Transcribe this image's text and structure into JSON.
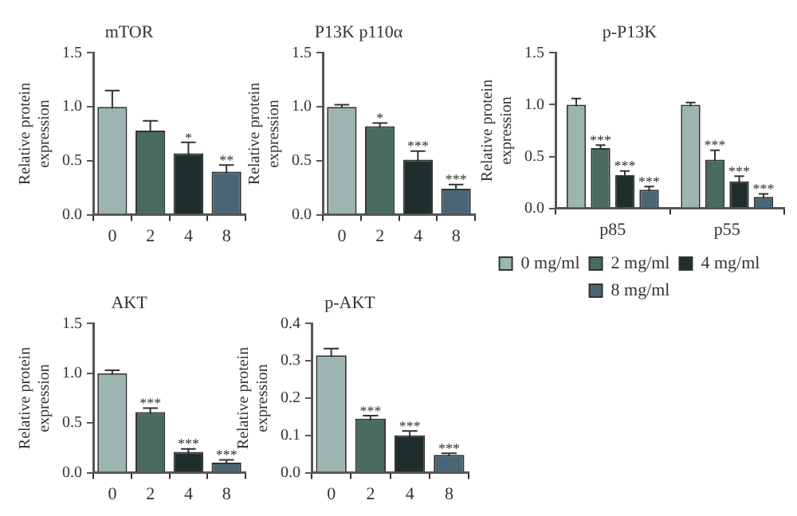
{
  "chart_data": [
    {
      "type": "bar",
      "title": "mTOR",
      "ylabel": "Relative protein expression",
      "categories": [
        "0",
        "2",
        "4",
        "8"
      ],
      "values": [
        1.0,
        0.78,
        0.57,
        0.4
      ],
      "colors": [
        "#9db5b0",
        "#4a6b5f",
        "#1f2e2c",
        "#4a6675"
      ],
      "errors": [
        0.15,
        0.09,
        0.1,
        0.06
      ],
      "ylim": [
        0,
        1.5
      ],
      "yticks": [
        {
          "value": 0,
          "label": "0.0"
        },
        {
          "value": 0.5,
          "label": "0.5"
        },
        {
          "value": 1,
          "label": "1.0"
        },
        {
          "value": 1.5,
          "label": "1.5"
        }
      ],
      "annotations": [
        {
          "text": "*",
          "x": "4",
          "y": 0.67
        },
        {
          "text": "**",
          "x": "8",
          "y": 0.46
        }
      ]
    },
    {
      "type": "bar",
      "title": "P13K p110α",
      "ylabel": "Relative protein expression",
      "categories": [
        "0",
        "2",
        "4",
        "8"
      ],
      "values": [
        1.0,
        0.82,
        0.51,
        0.24
      ],
      "colors": [
        "#9db5b0",
        "#4a6b5f",
        "#1f2e2c",
        "#4a6675"
      ],
      "errors": [
        0.02,
        0.03,
        0.08,
        0.04
      ],
      "ylim": [
        0,
        1.5
      ],
      "yticks": [
        {
          "value": 0,
          "label": "0.0"
        },
        {
          "value": 0.5,
          "label": "0.5"
        },
        {
          "value": 1,
          "label": "1.0"
        },
        {
          "value": 1.5,
          "label": "1.5"
        }
      ],
      "annotations": [
        {
          "text": "*",
          "x": "2",
          "y": 0.85
        },
        {
          "text": "***",
          "x": "4",
          "y": 0.59
        },
        {
          "text": "***",
          "x": "8",
          "y": 0.28
        }
      ]
    },
    {
      "type": "bar",
      "title": "p-P13K",
      "ylabel": "Relative protein expression",
      "categories": [
        "p85",
        "p55"
      ],
      "legend": "bottom",
      "series": [
        {
          "name": "0 mg/ml",
          "color": "#9db5b0",
          "values": [
            1.0,
            1.0
          ],
          "errors": [
            0.06,
            0.02
          ]
        },
        {
          "name": "2 mg/ml",
          "color": "#4a6b5f",
          "values": [
            0.58,
            0.47
          ],
          "errors": [
            0.03,
            0.09
          ]
        },
        {
          "name": "4 mg/ml",
          "color": "#1f2e2c",
          "values": [
            0.32,
            0.26
          ],
          "errors": [
            0.04,
            0.05
          ]
        },
        {
          "name": "8 mg/ml",
          "color": "#4a6675",
          "values": [
            0.18,
            0.11
          ],
          "errors": [
            0.03,
            0.03
          ]
        }
      ],
      "ylim": [
        0,
        1.5
      ],
      "yticks": [
        {
          "value": 0,
          "label": "0.0"
        },
        {
          "value": 0.5,
          "label": "0.5"
        },
        {
          "value": 1,
          "label": "1.0"
        },
        {
          "value": 1.5,
          "label": "1.5"
        }
      ],
      "annotations": [
        {
          "text": "***",
          "x": "p85",
          "y": 0.61
        },
        {
          "text": "***",
          "x": "p85",
          "y": 0.36
        },
        {
          "text": "***",
          "x": "p85",
          "y": 0.21
        },
        {
          "text": "***",
          "x": "p55",
          "y": 0.56
        },
        {
          "text": "***",
          "x": "p55",
          "y": 0.31
        },
        {
          "text": "***",
          "x": "p55",
          "y": 0.14
        }
      ]
    },
    {
      "type": "bar",
      "title": "AKT",
      "ylabel": "Relative protein expression",
      "categories": [
        "0",
        "2",
        "4",
        "8"
      ],
      "values": [
        1.0,
        0.61,
        0.21,
        0.1
      ],
      "colors": [
        "#9db5b0",
        "#4a6b5f",
        "#1f2e2c",
        "#4a6675"
      ],
      "errors": [
        0.03,
        0.04,
        0.03,
        0.03
      ],
      "ylim": [
        0,
        1.5
      ],
      "yticks": [
        {
          "value": 0,
          "label": "0.0"
        },
        {
          "value": 0.5,
          "label": "0.5"
        },
        {
          "value": 1,
          "label": "1.0"
        },
        {
          "value": 1.5,
          "label": "1.5"
        }
      ],
      "annotations": [
        {
          "text": "***",
          "x": "2",
          "y": 0.65
        },
        {
          "text": "***",
          "x": "4",
          "y": 0.24
        },
        {
          "text": "***",
          "x": "8",
          "y": 0.13
        }
      ]
    },
    {
      "type": "bar",
      "title": "p-AKT",
      "ylabel": "Relative protein expression",
      "categories": [
        "0",
        "2",
        "4",
        "8"
      ],
      "values": [
        0.315,
        0.145,
        0.1,
        0.048
      ],
      "colors": [
        "#9db5b0",
        "#4a6b5f",
        "#1f2e2c",
        "#4a6675"
      ],
      "errors": [
        0.018,
        0.008,
        0.012,
        0.004
      ],
      "ylim": [
        0,
        0.4
      ],
      "yticks": [
        {
          "value": 0,
          "label": "0.0"
        },
        {
          "value": 0.1,
          "label": "0.1"
        },
        {
          "value": 0.2,
          "label": "0.2"
        },
        {
          "value": 0.3,
          "label": "0.3"
        },
        {
          "value": 0.4,
          "label": "0.4"
        }
      ],
      "annotations": [
        {
          "text": "***",
          "x": "2",
          "y": 0.153
        },
        {
          "text": "***",
          "x": "4",
          "y": 0.112
        },
        {
          "text": "***",
          "x": "8",
          "y": 0.052
        }
      ]
    }
  ]
}
